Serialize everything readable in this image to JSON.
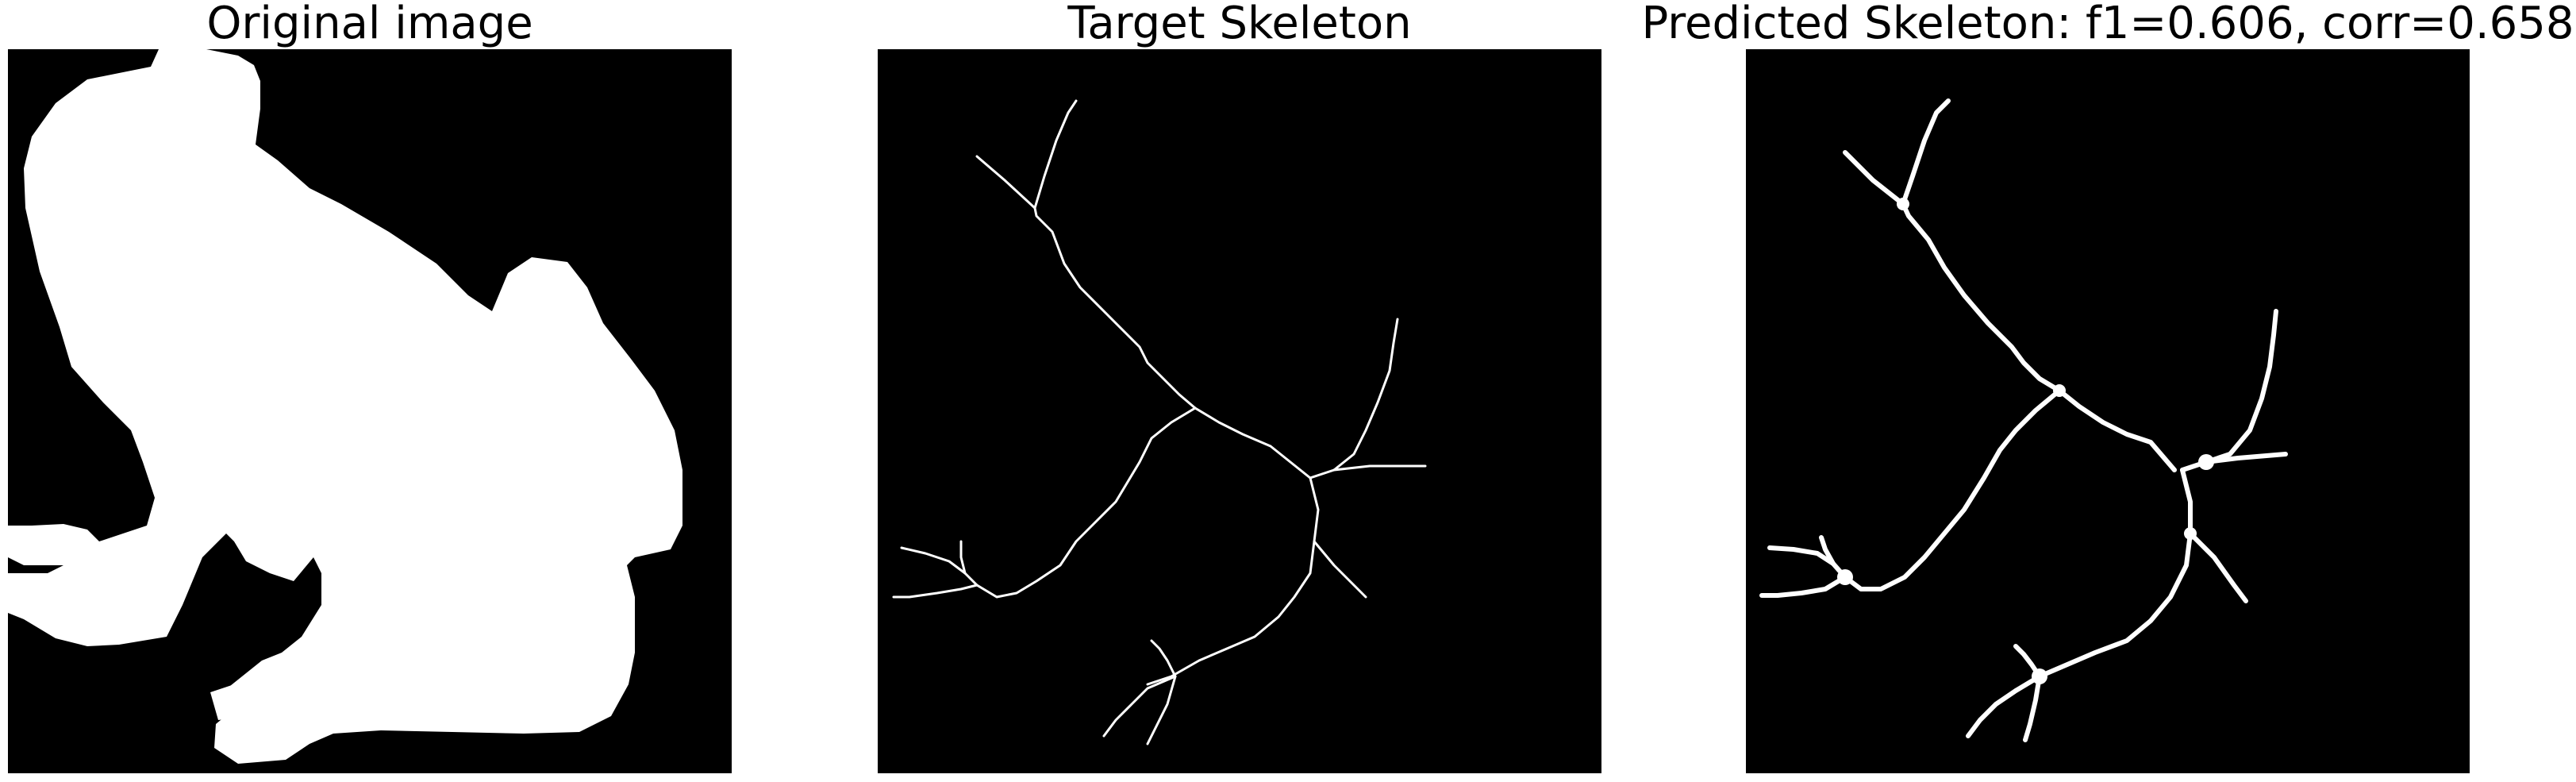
{
  "panels": [
    {
      "title": "Original image"
    },
    {
      "title": "Target Skeleton"
    },
    {
      "title": "Predicted Skeleton: f1=0.606, corr=0.658"
    }
  ],
  "colors": {
    "background": "#ffffff",
    "image_background": "#000000",
    "foreground": "#ffffff",
    "text": "#000000"
  },
  "metrics": {
    "f1": 0.606,
    "corr": 0.658
  }
}
